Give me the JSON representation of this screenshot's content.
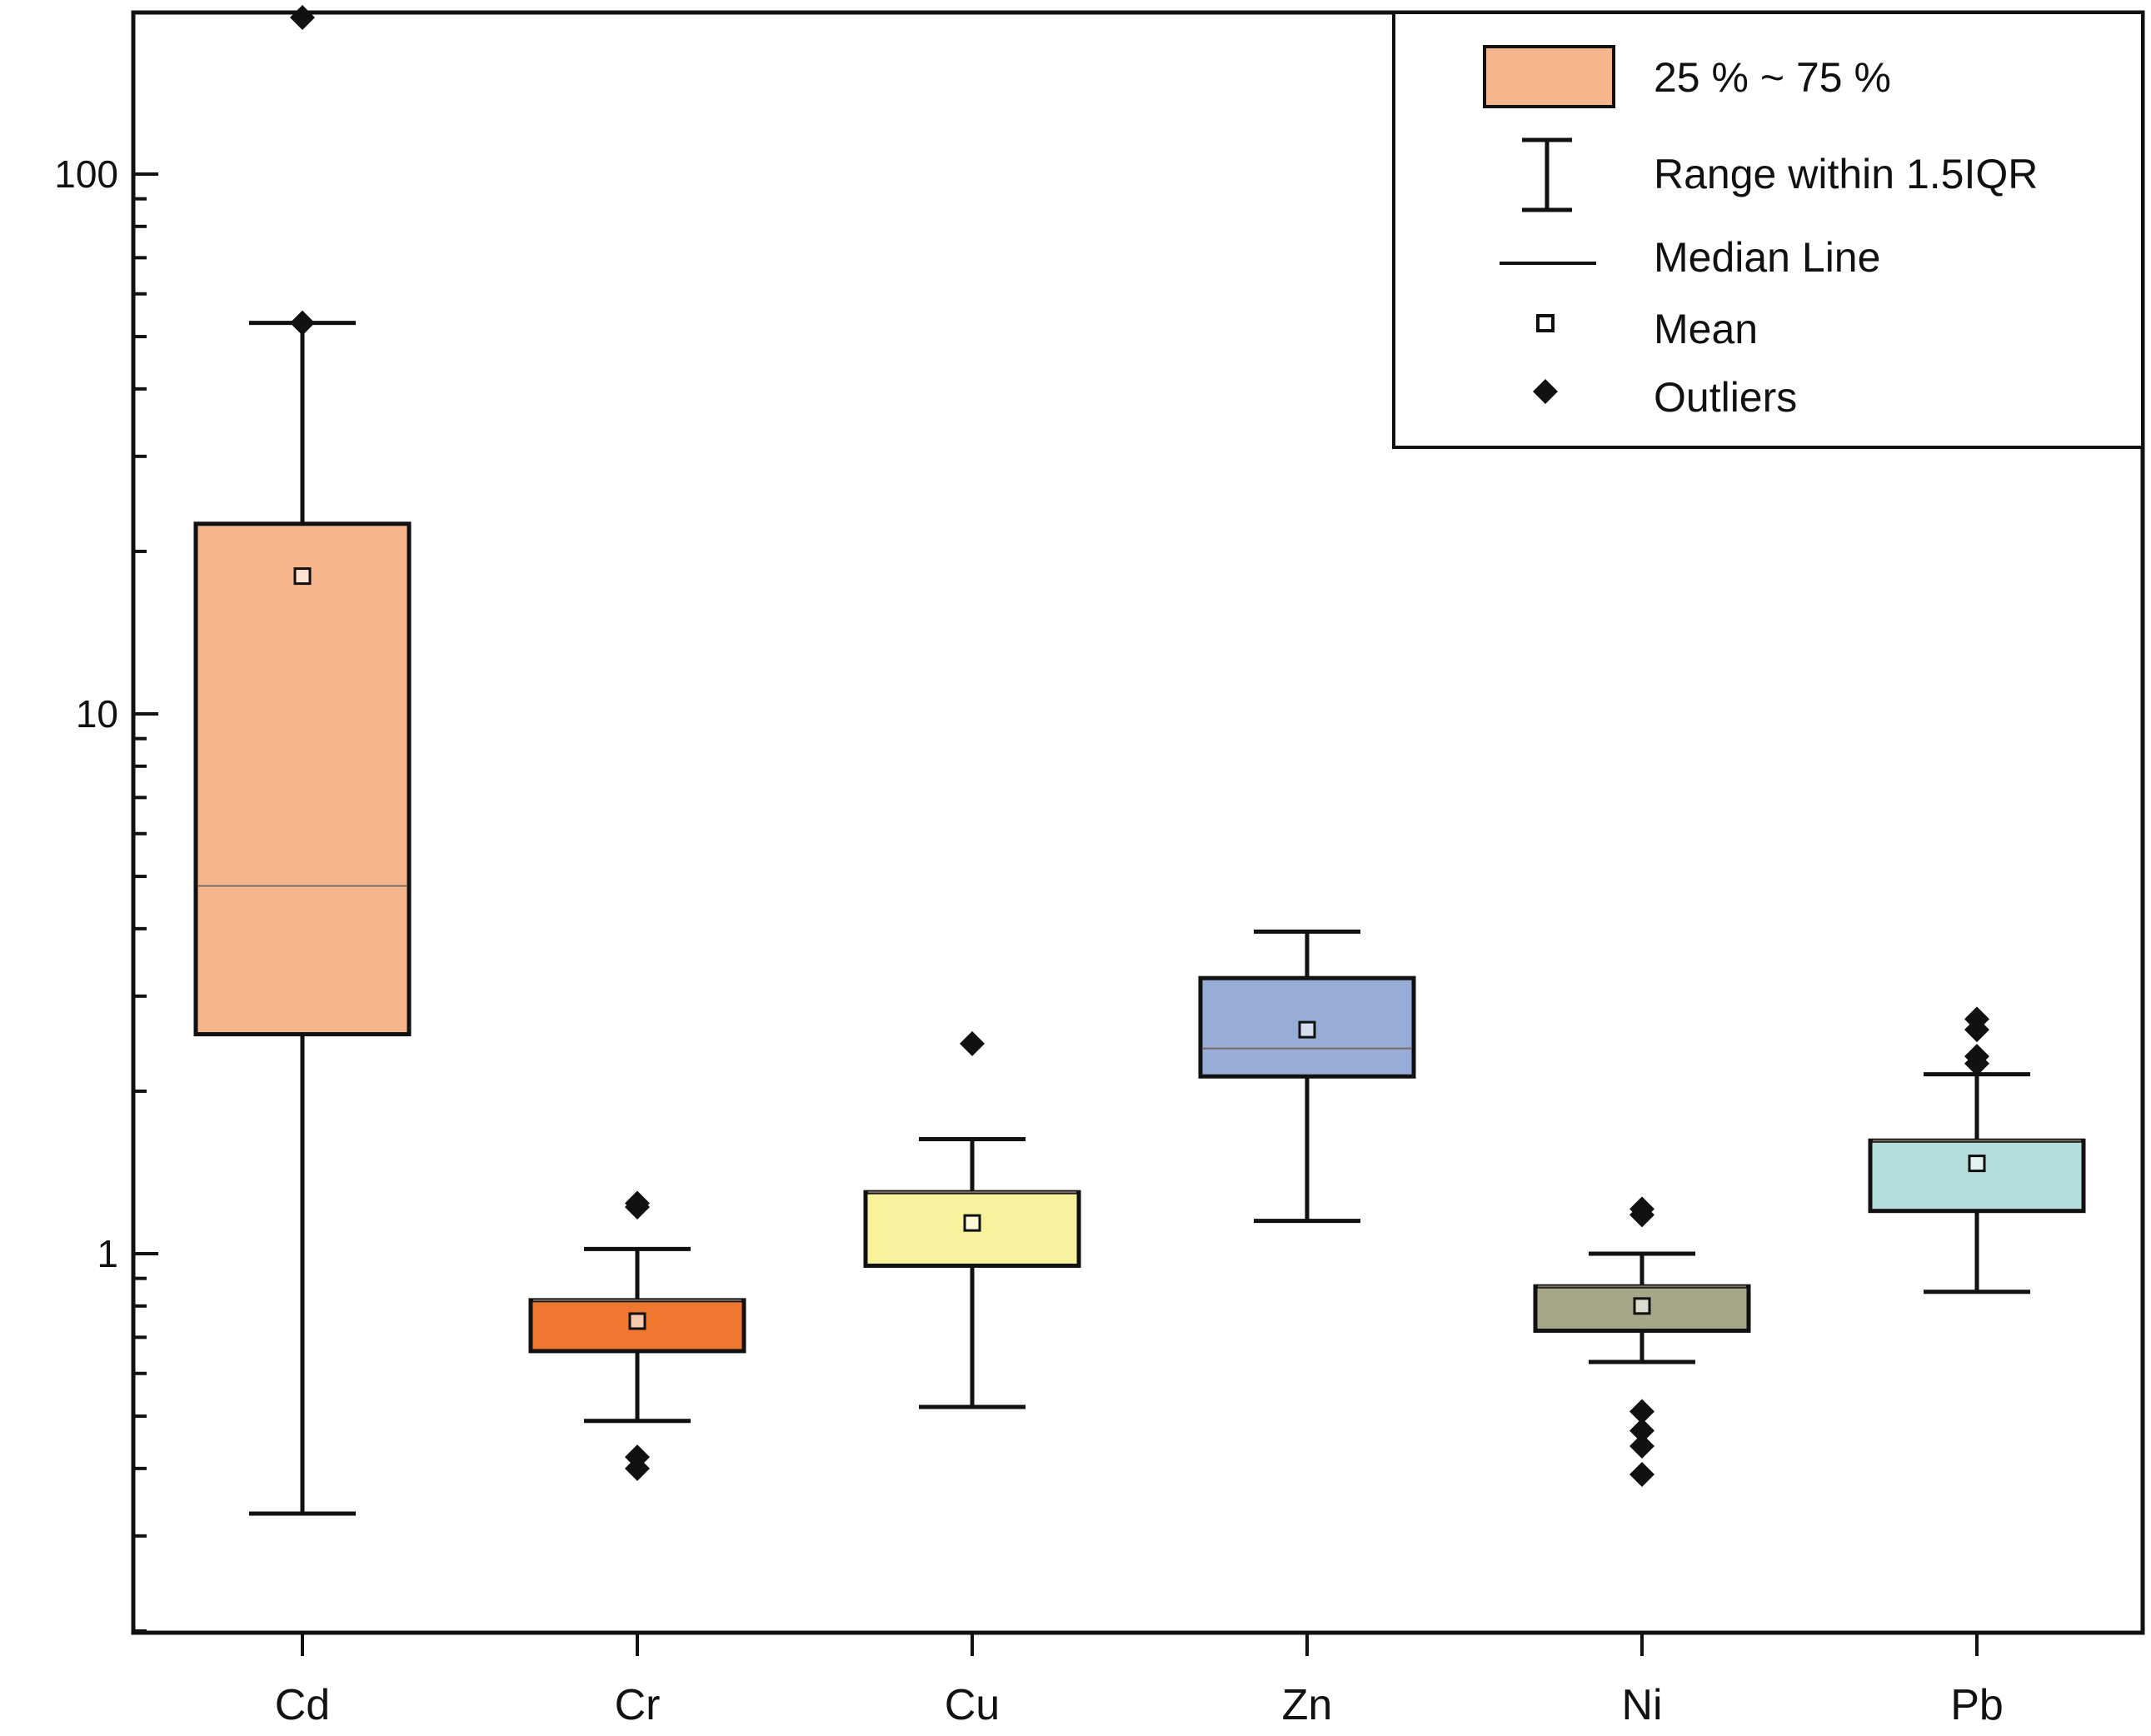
{
  "chart_data": {
    "type": "box",
    "yscale": "log",
    "ylim": [
      0.2,
      210
    ],
    "yticks": [
      {
        "value": 1,
        "label": "1"
      },
      {
        "value": 10,
        "label": "10"
      },
      {
        "value": 100,
        "label": "100"
      }
    ],
    "xlabel": "",
    "ylabel": "",
    "legend_position": "top-right",
    "categories": [
      "Cd",
      "Cr",
      "Cu",
      "Zn",
      "Ni",
      "Pb"
    ],
    "series": [
      {
        "name": "Cd",
        "color": "#F6B68D",
        "q1": 2.55,
        "median": 4.8,
        "q3": 22.5,
        "mean": 18,
        "whisker_low": 0.33,
        "whisker_high": 53,
        "outliers": [
          195,
          53
        ]
      },
      {
        "name": "Cr",
        "color": "#EE7830",
        "q1": 0.66,
        "median": 0.82,
        "q3": 0.82,
        "mean": 0.75,
        "whisker_low": 0.49,
        "whisker_high": 1.02,
        "outliers": [
          1.24,
          1.22,
          0.42,
          0.4
        ]
      },
      {
        "name": "Cu",
        "color": "#F8F29C",
        "q1": 0.95,
        "median": 1.3,
        "q3": 1.3,
        "mean": 1.14,
        "whisker_low": 0.52,
        "whisker_high": 1.63,
        "outliers": [
          2.45
        ]
      },
      {
        "name": "Zn",
        "color": "#97ACD6",
        "q1": 2.13,
        "median": 2.4,
        "q3": 3.24,
        "mean": 2.6,
        "whisker_low": 1.15,
        "whisker_high": 3.95,
        "outliers": []
      },
      {
        "name": "Ni",
        "color": "#A6A786",
        "q1": 0.72,
        "median": 0.87,
        "q3": 0.87,
        "mean": 0.8,
        "whisker_low": 0.63,
        "whisker_high": 1.0,
        "outliers": [
          1.21,
          1.18,
          0.51,
          0.47,
          0.44,
          0.39
        ]
      },
      {
        "name": "Pb",
        "color": "#B3DEDC",
        "q1": 1.2,
        "median": 1.62,
        "q3": 1.62,
        "mean": 1.47,
        "whisker_low": 0.85,
        "whisker_high": 2.15,
        "outliers": [
          2.72,
          2.6,
          2.32,
          2.25
        ]
      }
    ],
    "legend": {
      "box_label": "25 %  ~ 75 %",
      "box_color": "#F6B68D",
      "whisker_label": "Range within 1.5IQR",
      "median_label": "Median Line",
      "mean_label": "Mean",
      "outlier_label": "Outliers"
    }
  }
}
